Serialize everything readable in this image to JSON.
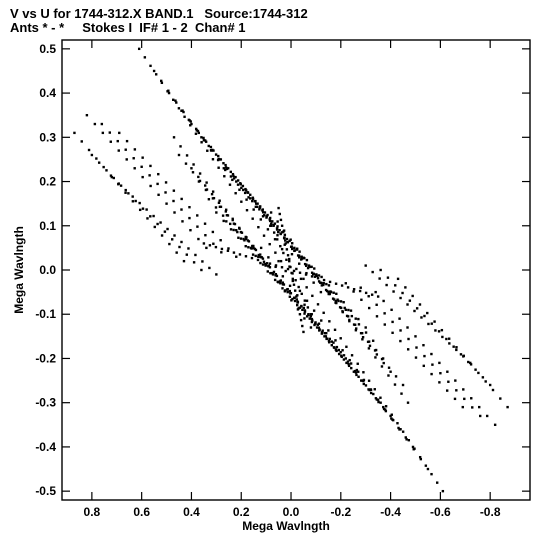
{
  "header": {
    "line1": "V vs U for 1744-312.X BAND.1   Source:1744-312",
    "line2": "Ants * - *     Stokes I  IF# 1 - 2  Chan# 1"
  },
  "chart_data": {
    "type": "scatter",
    "title": "V vs U for 1744-312.X BAND.1   Source:1744-312",
    "subtitle": "Ants * - *     Stokes I  IF# 1 - 2  Chan# 1",
    "xlabel": "Mega Wavlngth",
    "ylabel": "Mega Wavlngth",
    "xlim": [
      0.92,
      -0.96
    ],
    "ylim": [
      -0.52,
      0.52
    ],
    "x_reversed": true,
    "x_ticks": [
      0.8,
      0.6,
      0.4,
      0.2,
      0.0,
      -0.2,
      -0.4,
      -0.6,
      -0.8
    ],
    "x_tick_labels": [
      "0.8",
      "0.6",
      "0.4",
      "0.2",
      "0.0",
      "-0.2",
      "-0.4",
      "-0.6",
      "-0.8"
    ],
    "y_ticks": [
      0.5,
      0.4,
      0.3,
      0.2,
      0.1,
      0.0,
      -0.1,
      -0.2,
      -0.3,
      -0.4,
      -0.5
    ],
    "y_tick_labels": [
      "0.5",
      "0.4",
      "0.3",
      "0.2",
      "0.1",
      "0.0",
      "-0.1",
      "-0.2",
      "-0.3",
      "-0.4",
      "-0.5"
    ],
    "grid": false,
    "point_color": "#000000",
    "tracks": [
      {
        "x0": 0.61,
        "y0": 0.5,
        "x1": 0.04,
        "y1": 0.02,
        "n": 26
      },
      {
        "x0": 0.55,
        "y0": 0.45,
        "x1": -0.05,
        "y1": -0.02,
        "n": 22
      },
      {
        "x0": 0.49,
        "y0": 0.4,
        "x1": -0.12,
        "y1": -0.05,
        "n": 22
      },
      {
        "x0": 0.44,
        "y0": 0.36,
        "x1": -0.18,
        "y1": -0.07,
        "n": 22
      },
      {
        "x0": 0.4,
        "y0": 0.33,
        "x1": -0.22,
        "y1": -0.09,
        "n": 22
      },
      {
        "x0": 0.36,
        "y0": 0.3,
        "x1": -0.26,
        "y1": -0.11,
        "n": 22
      },
      {
        "x0": 0.32,
        "y0": 0.27,
        "x1": -0.3,
        "y1": -0.13,
        "n": 22
      },
      {
        "x0": 0.27,
        "y0": 0.23,
        "x1": -0.33,
        "y1": -0.16,
        "n": 22
      },
      {
        "x0": 0.22,
        "y0": 0.2,
        "x1": -0.37,
        "y1": -0.2,
        "n": 22
      },
      {
        "x0": 0.18,
        "y0": 0.18,
        "x1": -0.4,
        "y1": -0.23,
        "n": 22
      },
      {
        "x0": 0.14,
        "y0": 0.15,
        "x1": -0.45,
        "y1": -0.26,
        "n": 22
      },
      {
        "x0": 0.08,
        "y0": 0.13,
        "x1": -0.47,
        "y1": -0.3,
        "n": 22
      },
      {
        "x0": -0.04,
        "y0": -0.02,
        "x1": -0.61,
        "y1": -0.5,
        "n": 26
      },
      {
        "x0": 0.05,
        "y0": 0.02,
        "x1": -0.55,
        "y1": -0.45,
        "n": 22
      },
      {
        "x0": 0.12,
        "y0": 0.05,
        "x1": -0.49,
        "y1": -0.4,
        "n": 22
      },
      {
        "x0": 0.18,
        "y0": 0.07,
        "x1": -0.44,
        "y1": -0.36,
        "n": 22
      },
      {
        "x0": 0.22,
        "y0": 0.09,
        "x1": -0.4,
        "y1": -0.33,
        "n": 22
      },
      {
        "x0": 0.26,
        "y0": 0.11,
        "x1": -0.36,
        "y1": -0.3,
        "n": 22
      },
      {
        "x0": 0.3,
        "y0": 0.13,
        "x1": -0.32,
        "y1": -0.27,
        "n": 22
      },
      {
        "x0": 0.33,
        "y0": 0.16,
        "x1": -0.27,
        "y1": -0.23,
        "n": 22
      },
      {
        "x0": 0.37,
        "y0": 0.2,
        "x1": -0.22,
        "y1": -0.2,
        "n": 22
      },
      {
        "x0": 0.4,
        "y0": 0.23,
        "x1": -0.18,
        "y1": -0.18,
        "n": 22
      },
      {
        "x0": 0.45,
        "y0": 0.26,
        "x1": -0.14,
        "y1": -0.15,
        "n": 22
      },
      {
        "x0": 0.47,
        "y0": 0.3,
        "x1": -0.08,
        "y1": -0.13,
        "n": 22
      },
      {
        "x0": 0.87,
        "y0": 0.31,
        "x1": 0.43,
        "y1": 0.02,
        "n": 16
      },
      {
        "x0": 0.82,
        "y0": 0.35,
        "x1": 0.34,
        "y1": 0.05,
        "n": 16
      },
      {
        "x0": 0.76,
        "y0": 0.33,
        "x1": 0.28,
        "y1": 0.04,
        "n": 16
      },
      {
        "x0": 0.69,
        "y0": 0.31,
        "x1": 0.22,
        "y1": 0.03,
        "n": 16
      },
      {
        "x0": 0.8,
        "y0": 0.26,
        "x1": 0.36,
        "y1": 0.0,
        "n": 16
      },
      {
        "x0": 0.72,
        "y0": 0.21,
        "x1": 0.3,
        "y1": -0.01,
        "n": 16
      },
      {
        "x0": -0.87,
        "y0": -0.31,
        "x1": -0.43,
        "y1": -0.02,
        "n": 16
      },
      {
        "x0": -0.82,
        "y0": -0.35,
        "x1": -0.34,
        "y1": -0.05,
        "n": 16
      },
      {
        "x0": -0.76,
        "y0": -0.33,
        "x1": -0.28,
        "y1": -0.04,
        "n": 16
      },
      {
        "x0": -0.69,
        "y0": -0.31,
        "x1": -0.22,
        "y1": -0.03,
        "n": 16
      },
      {
        "x0": -0.8,
        "y0": -0.26,
        "x1": -0.36,
        "y1": 0.0,
        "n": 16
      },
      {
        "x0": -0.72,
        "y0": -0.21,
        "x1": -0.3,
        "y1": 0.01,
        "n": 16
      },
      {
        "x0": 0.35,
        "y0": 0.06,
        "x1": -0.35,
        "y1": -0.06,
        "n": 30
      },
      {
        "x0": 0.05,
        "y0": 0.14,
        "x1": -0.05,
        "y1": -0.14,
        "n": 22
      },
      {
        "x0": 0.08,
        "y0": 0.1,
        "x1": -0.08,
        "y1": -0.1,
        "n": 14
      }
    ]
  }
}
